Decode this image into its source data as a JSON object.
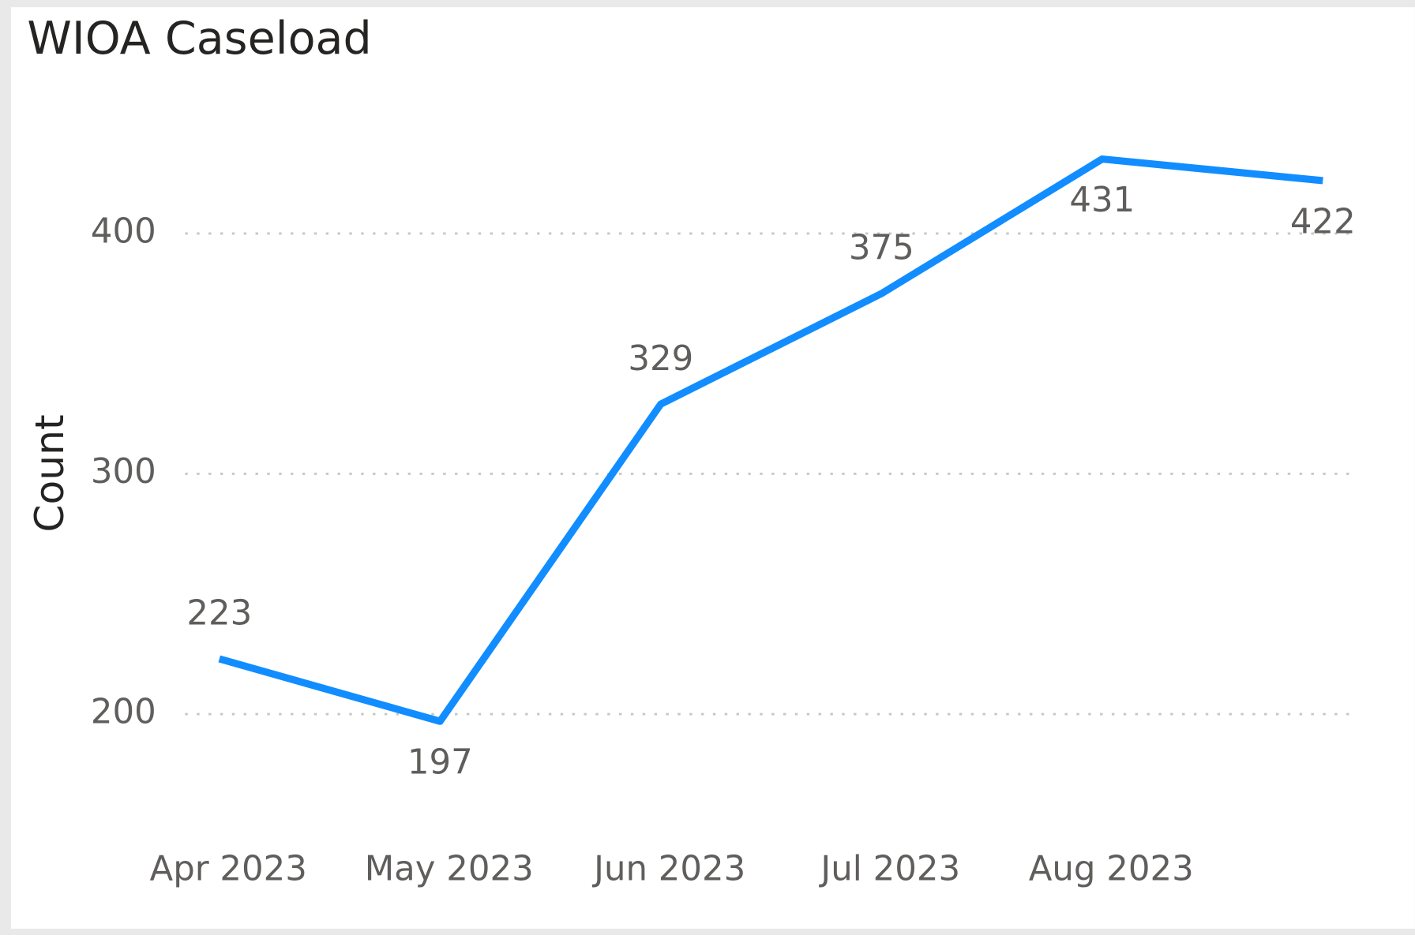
{
  "chart_data": {
    "type": "line",
    "title": "WIOA Caseload",
    "y_label": "Count",
    "categories": [
      "Apr 2023",
      "May 2023",
      "Jun 2023",
      "Jul 2023",
      "Aug 2023",
      null
    ],
    "series": [
      {
        "name": "Count",
        "color": "#118dff",
        "values": [
          223,
          197,
          329,
          375,
          431,
          422
        ]
      }
    ],
    "ylim": [
      160,
      450
    ],
    "yticks": [
      200,
      300,
      400
    ],
    "grid": true
  }
}
